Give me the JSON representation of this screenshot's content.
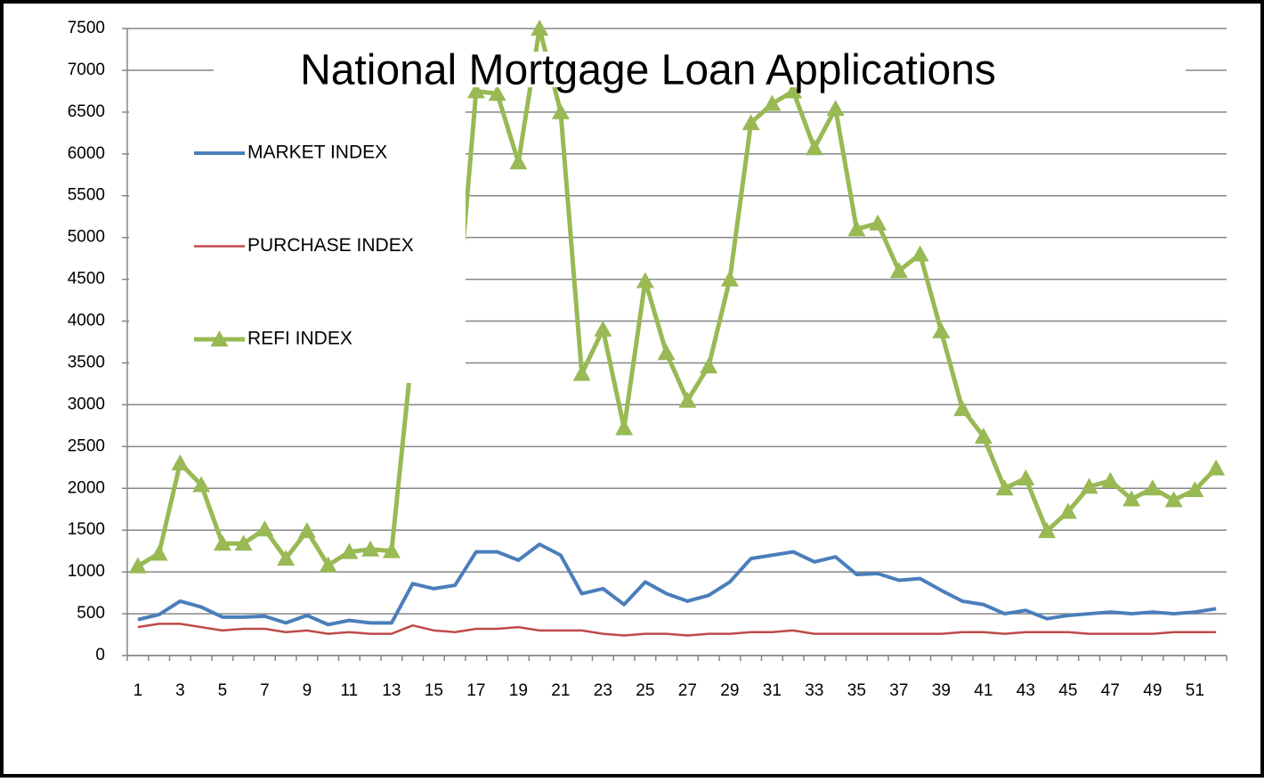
{
  "chart_data": {
    "type": "line",
    "title": "National Mortgage Loan Applications",
    "categories": [
      "1",
      null,
      "3",
      null,
      "5",
      null,
      "7",
      null,
      "9",
      null,
      "11",
      null,
      "13",
      null,
      "15",
      null,
      "17",
      null,
      "19",
      null,
      "21",
      null,
      "23",
      null,
      "25",
      null,
      "27",
      null,
      "29",
      null,
      "31",
      null,
      "33",
      null,
      "35",
      null,
      "37",
      null,
      "39",
      null,
      "41",
      null,
      "43",
      null,
      "45",
      null,
      "47",
      null,
      "49",
      null,
      "51",
      null
    ],
    "series": [
      {
        "name": "MARKET INDEX",
        "color": "#4a7ebb",
        "values": [
          430,
          490,
          650,
          580,
          460,
          460,
          470,
          390,
          480,
          370,
          420,
          390,
          390,
          860,
          800,
          840,
          1240,
          1240,
          1140,
          1330,
          1200,
          740,
          800,
          610,
          880,
          740,
          650,
          720,
          880,
          1160,
          1200,
          1240,
          1120,
          1180,
          970,
          980,
          900,
          920,
          780,
          650,
          610,
          500,
          540,
          440,
          480,
          500,
          520,
          500,
          520,
          500,
          520,
          560
        ]
      },
      {
        "name": "PURCHASE INDEX",
        "color": "#be4b48",
        "values": [
          340,
          380,
          380,
          340,
          300,
          320,
          320,
          280,
          300,
          260,
          280,
          260,
          260,
          360,
          300,
          280,
          320,
          320,
          340,
          300,
          300,
          300,
          260,
          240,
          260,
          260,
          240,
          260,
          260,
          280,
          280,
          300,
          260,
          260,
          260,
          260,
          260,
          260,
          260,
          280,
          280,
          260,
          280,
          280,
          280,
          260,
          260,
          260,
          260,
          280,
          280,
          280
        ]
      },
      {
        "name": "REFI INDEX",
        "color": "#98b954",
        "marker": "triangle",
        "values": [
          1070,
          1220,
          2300,
          2040,
          1340,
          1340,
          1510,
          1160,
          1490,
          1080,
          1240,
          1270,
          1250,
          3700,
          3600,
          3750,
          6750,
          6720,
          5900,
          7500,
          6500,
          3370,
          3900,
          2720,
          4480,
          3620,
          3050,
          3460,
          4500,
          6370,
          6600,
          6750,
          6070,
          6540,
          5100,
          5170,
          4600,
          4800,
          3880,
          2950,
          2620,
          2000,
          2120,
          1490,
          1720,
          2020,
          2090,
          1870,
          2000,
          1860,
          1980,
          2240
        ]
      }
    ],
    "ylim": [
      0,
      7500
    ],
    "yticks": [
      0,
      500,
      1000,
      1500,
      2000,
      2500,
      3000,
      3500,
      4000,
      4500,
      5000,
      5500,
      6000,
      6500,
      7000,
      7500
    ],
    "grid": true
  }
}
